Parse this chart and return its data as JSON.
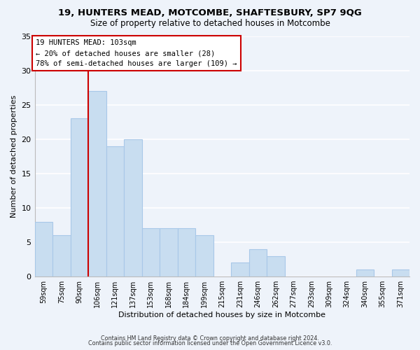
{
  "title": "19, HUNTERS MEAD, MOTCOMBE, SHAFTESBURY, SP7 9QG",
  "subtitle": "Size of property relative to detached houses in Motcombe",
  "xlabel": "Distribution of detached houses by size in Motcombe",
  "ylabel": "Number of detached properties",
  "bar_color": "#c8ddf0",
  "bar_edgecolor": "#a8c8e8",
  "background_color": "#eef3fa",
  "grid_color": "#ffffff",
  "categories": [
    "59sqm",
    "75sqm",
    "90sqm",
    "106sqm",
    "121sqm",
    "137sqm",
    "153sqm",
    "168sqm",
    "184sqm",
    "199sqm",
    "215sqm",
    "231sqm",
    "246sqm",
    "262sqm",
    "277sqm",
    "293sqm",
    "309sqm",
    "324sqm",
    "340sqm",
    "355sqm",
    "371sqm"
  ],
  "values": [
    8,
    6,
    23,
    27,
    19,
    20,
    7,
    7,
    7,
    6,
    0,
    2,
    4,
    3,
    0,
    0,
    0,
    0,
    1,
    0,
    1
  ],
  "ylim": [
    0,
    35
  ],
  "yticks": [
    0,
    5,
    10,
    15,
    20,
    25,
    30,
    35
  ],
  "vline_index": 3,
  "vline_color": "#cc0000",
  "annotation_line1": "19 HUNTERS MEAD: 103sqm",
  "annotation_line2": "← 20% of detached houses are smaller (28)",
  "annotation_line3": "78% of semi-detached houses are larger (109) →",
  "annotation_box_edgecolor": "#cc0000",
  "footer1": "Contains HM Land Registry data © Crown copyright and database right 2024.",
  "footer2": "Contains public sector information licensed under the Open Government Licence v3.0."
}
